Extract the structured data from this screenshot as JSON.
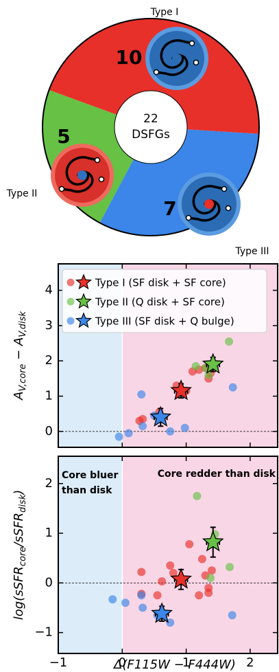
{
  "chart_data": [
    {
      "type": "pie",
      "categories": [
        "Type I",
        "Type II",
        "Type III"
      ],
      "values": [
        10,
        5,
        7
      ],
      "colors": [
        "#e8302a",
        "#66c144",
        "#3b86e8"
      ],
      "center_value": 22,
      "center_label": "DSFGs"
    },
    {
      "type": "scatter",
      "ylabel": [
        "A",
        "V,core",
        " − A",
        "V,disk"
      ],
      "xlim": [
        -1,
        2.43
      ],
      "ylim": [
        -0.45,
        4.75
      ],
      "xticks": [
        -1,
        0,
        1,
        2
      ],
      "xticklabels": false,
      "yticks": [
        0,
        1,
        2,
        3,
        4
      ],
      "reference_line": 0,
      "legend": "upper left",
      "series": [
        {
          "name": "Type I (SF disk + SF core)",
          "color": "#e8302a",
          "x": [
            0.27,
            0.32,
            0.58,
            0.85,
            1.0,
            1.1,
            1.2,
            1.3,
            1.35,
            1.38
          ],
          "y": [
            0.3,
            0.35,
            0.55,
            1.3,
            1.15,
            1.7,
            1.75,
            1.8,
            1.5,
            1.65
          ],
          "star": {
            "x": 0.92,
            "y": 1.15,
            "xerr": 0.1,
            "yerr": 0.2
          }
        },
        {
          "name": "Type II (Q disk + SF core)",
          "color": "#66c144",
          "x": [
            1.15,
            1.3,
            1.35,
            1.67
          ],
          "y": [
            1.85,
            1.8,
            1.6,
            2.55
          ],
          "star": {
            "x": 1.42,
            "y": 1.9,
            "xerr": 0.1,
            "yerr": 0.2
          }
        },
        {
          "name": "Type III (SF disk + Q bulge)",
          "color": "#3b86e8",
          "x": [
            -0.05,
            0.1,
            0.3,
            0.32,
            0.5,
            0.75,
            0.98,
            1.73
          ],
          "y": [
            -0.15,
            -0.05,
            1.05,
            0.15,
            0.45,
            0.0,
            0.1,
            1.25
          ],
          "star": {
            "x": 0.6,
            "y": 0.4,
            "xerr": 0.1,
            "yerr": 0.25
          }
        }
      ]
    },
    {
      "type": "scatter",
      "ylabel": [
        "log(sSFR",
        "core",
        "/sSFR",
        "disk",
        ")"
      ],
      "xlabel": "Δ(F115W − F444W)",
      "xlim": [
        -1,
        2.43
      ],
      "ylim": [
        -1.42,
        2.55
      ],
      "xticks": [
        {
          "value": -1,
          "label": "−1"
        },
        0,
        1,
        2
      ],
      "yticks": [
        {
          "value": -1,
          "label": "−1"
        },
        0,
        1,
        2
      ],
      "reference_line": 0,
      "annotations": {
        "left": [
          "Core bluer",
          "than disk"
        ],
        "right": "Core redder than disk"
      },
      "series": [
        {
          "color": "#e8302a",
          "x": [
            0.3,
            0.3,
            0.55,
            0.62,
            0.75,
            0.8,
            1.05,
            1.2,
            1.25,
            1.3,
            1.35,
            1.35,
            1.4
          ],
          "y": [
            0.22,
            -0.22,
            -0.25,
            0.03,
            0.35,
            0.2,
            0.78,
            -0.25,
            0.48,
            0.15,
            -0.1,
            -0.2,
            0.25
          ],
          "star": {
            "x": 0.92,
            "y": 0.07,
            "xerr": 0.1,
            "yerr": 0.2
          }
        },
        {
          "color": "#66c144",
          "x": [
            1.17,
            1.38,
            1.45,
            1.68
          ],
          "y": [
            1.75,
            0.1,
            0.98,
            0.32
          ],
          "star": {
            "x": 1.42,
            "y": 0.82,
            "xerr": 0.1,
            "yerr": 0.3
          }
        },
        {
          "color": "#3b86e8",
          "x": [
            -0.15,
            0.05,
            0.3,
            0.32,
            0.55,
            0.75,
            1.72
          ],
          "y": [
            -0.33,
            -0.4,
            -0.25,
            -0.5,
            -0.65,
            -0.8,
            -0.65
          ],
          "star": {
            "x": 0.62,
            "y": -0.62,
            "xerr": 0.1,
            "yerr": 0.15
          }
        }
      ]
    }
  ]
}
